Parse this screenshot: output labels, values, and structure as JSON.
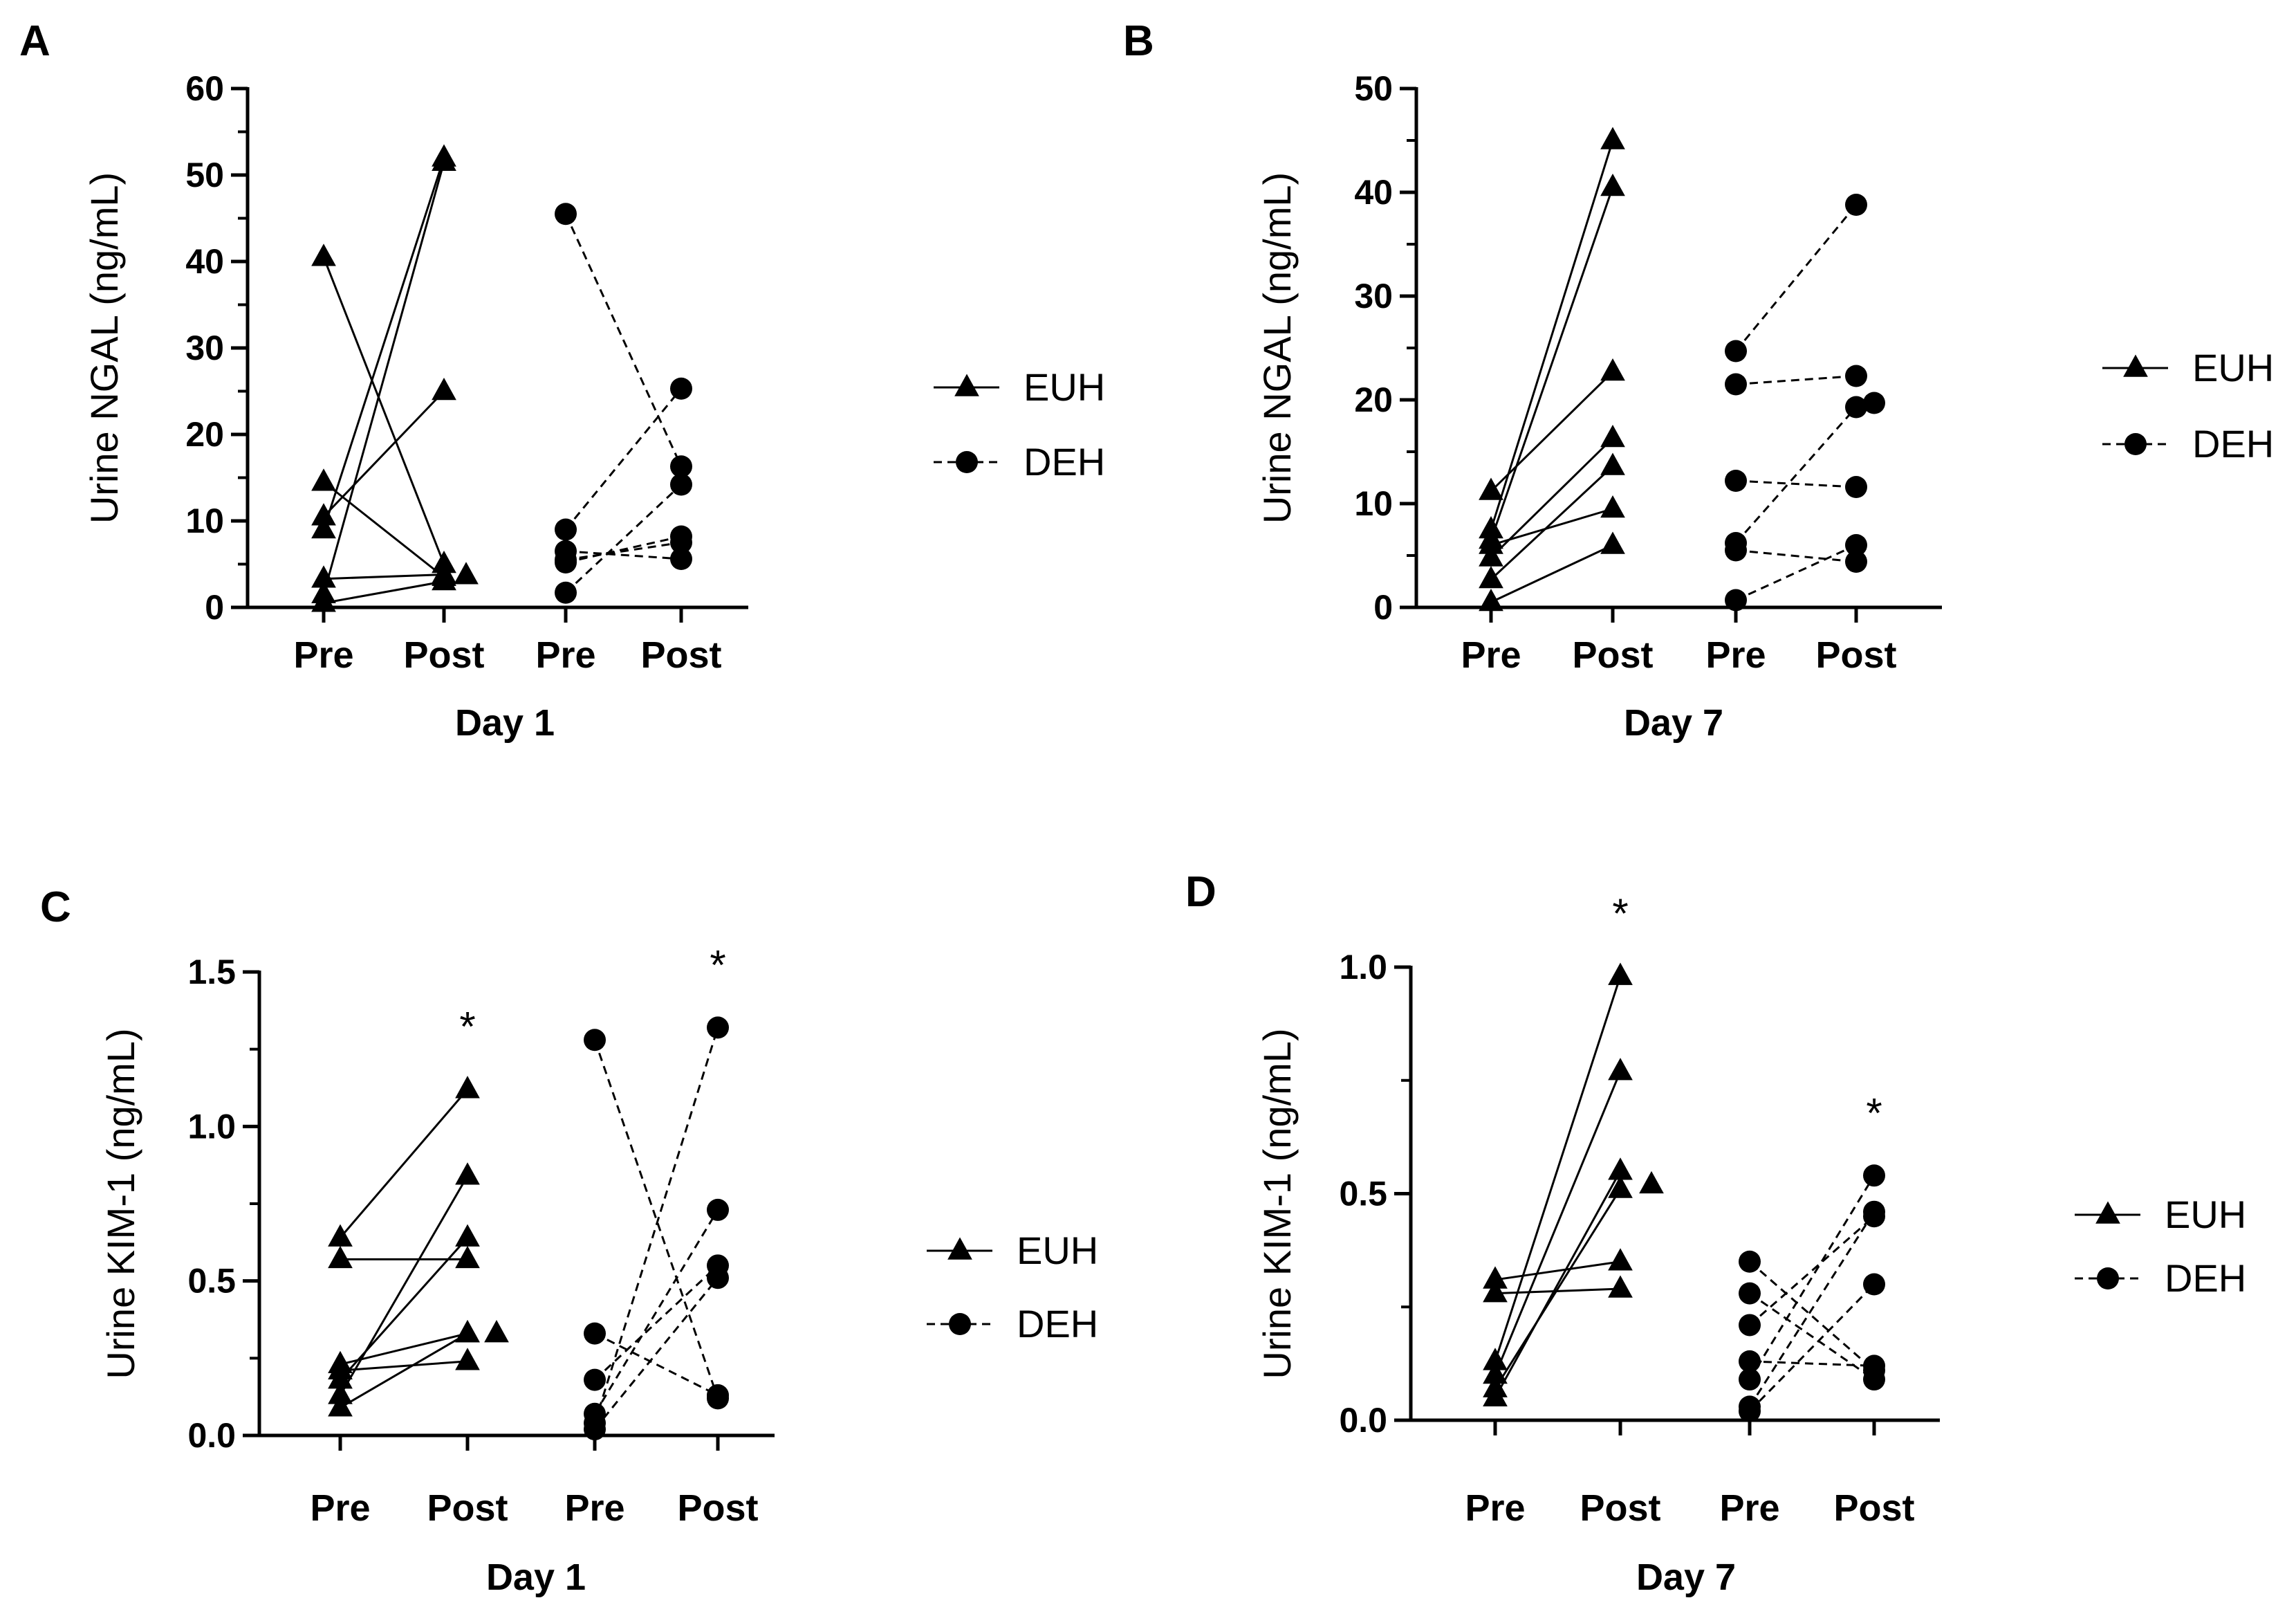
{
  "chart_data": [
    {
      "panel": "A",
      "type": "scatter",
      "ylabel": "Urine NGAL (ng/mL)",
      "xlabel": "Day 1",
      "categories": [
        "Pre",
        "Post",
        "Pre",
        "Post"
      ],
      "ylim": [
        0,
        60
      ],
      "yticks": [
        0,
        10,
        20,
        30,
        40,
        50,
        60
      ],
      "yticks_text": [
        "0",
        "10",
        "20",
        "30",
        "40",
        "50",
        "60"
      ],
      "significance": [],
      "legend": [
        {
          "name": "EUH",
          "marker": "triangle",
          "line": "solid"
        },
        {
          "name": "DEH",
          "marker": "circle",
          "line": "dashed"
        }
      ],
      "series": [
        {
          "name": "EUH",
          "pairs": [
            [
              40.5,
              5.0
            ],
            [
              14.5,
              3.5
            ],
            [
              10.5,
              25.0
            ],
            [
              9.0,
              52.0
            ],
            [
              3.3,
              3.8
            ],
            [
              1.5,
              51.5
            ],
            [
              0.5,
              3.0
            ]
          ],
          "unpaired_post": [
            3.7
          ]
        },
        {
          "name": "DEH",
          "pairs": [
            [
              45.5,
              16.3
            ],
            [
              9.0,
              25.3
            ],
            [
              6.5,
              5.6
            ],
            [
              5.5,
              7.5
            ],
            [
              5.2,
              8.2
            ],
            [
              1.7,
              14.2
            ]
          ],
          "unpaired_post": []
        }
      ]
    },
    {
      "panel": "B",
      "type": "scatter",
      "ylabel": "Urine NGAL (ng/mL)",
      "xlabel": "Day 7",
      "categories": [
        "Pre",
        "Post",
        "Pre",
        "Post"
      ],
      "ylim": [
        0,
        50
      ],
      "yticks": [
        0,
        10,
        20,
        30,
        40,
        50
      ],
      "yticks_text": [
        "0",
        "10",
        "20",
        "30",
        "40",
        "50"
      ],
      "significance": [],
      "legend": [
        {
          "name": "EUH",
          "marker": "triangle",
          "line": "solid"
        },
        {
          "name": "DEH",
          "marker": "circle",
          "line": "dashed"
        }
      ],
      "series": [
        {
          "name": "EUH",
          "pairs": [
            [
              11.2,
              22.7
            ],
            [
              7.5,
              45.0
            ],
            [
              6.5,
              40.5
            ],
            [
              6.0,
              9.5
            ],
            [
              4.8,
              16.3
            ],
            [
              2.7,
              13.6
            ],
            [
              0.5,
              6.0
            ]
          ],
          "unpaired_post": []
        },
        {
          "name": "DEH",
          "pairs": [
            [
              24.7,
              38.8
            ],
            [
              21.5,
              22.3
            ],
            [
              12.2,
              11.6
            ],
            [
              6.2,
              19.3
            ],
            [
              5.5,
              4.4
            ],
            [
              0.7,
              6.0
            ]
          ],
          "unpaired_post": [
            19.7
          ]
        }
      ]
    },
    {
      "panel": "C",
      "type": "scatter",
      "ylabel": "Urine KIM-1 (ng/mL)",
      "xlabel": "Day 1",
      "categories": [
        "Pre",
        "Post",
        "Pre",
        "Post"
      ],
      "ylim": [
        0,
        1.5
      ],
      "yticks": [
        0,
        0.5,
        1.0,
        1.5
      ],
      "yticks_text": [
        "0.0",
        "0.5",
        "1.0",
        "1.5"
      ],
      "significance": [
        {
          "category_index": 1,
          "label": "*"
        },
        {
          "category_index": 3,
          "label": "*"
        }
      ],
      "legend": [
        {
          "name": "EUH",
          "marker": "triangle",
          "line": "solid"
        },
        {
          "name": "DEH",
          "marker": "circle",
          "line": "dashed"
        }
      ],
      "series": [
        {
          "name": "EUH",
          "pairs": [
            [
              0.64,
              1.12
            ],
            [
              0.57,
              0.57
            ],
            [
              0.23,
              0.33
            ],
            [
              0.21,
              0.24
            ],
            [
              0.18,
              0.64
            ],
            [
              0.13,
              0.84
            ],
            [
              0.09,
              0.33
            ]
          ],
          "unpaired_post": [
            0.33
          ]
        },
        {
          "name": "DEH",
          "pairs": [
            [
              1.28,
              0.12
            ],
            [
              0.33,
              0.13
            ],
            [
              0.18,
              0.55
            ],
            [
              0.07,
              0.73
            ],
            [
              0.04,
              1.32
            ],
            [
              0.02,
              0.51
            ]
          ],
          "unpaired_post": []
        }
      ]
    },
    {
      "panel": "D",
      "type": "scatter",
      "ylabel": "Urine KIM-1 (ng/mL)",
      "xlabel": "Day 7",
      "categories": [
        "Pre",
        "Post",
        "Pre",
        "Post"
      ],
      "ylim": [
        0,
        1.0
      ],
      "yticks": [
        0,
        0.5,
        1.0
      ],
      "yticks_text": [
        "0.0",
        "0.5",
        "1.0"
      ],
      "significance": [
        {
          "category_index": 1,
          "label": "*"
        },
        {
          "category_index": 3,
          "label": "*"
        }
      ],
      "legend": [
        {
          "name": "EUH",
          "marker": "triangle",
          "line": "solid"
        },
        {
          "name": "DEH",
          "marker": "circle",
          "line": "dashed"
        }
      ],
      "series": [
        {
          "name": "EUH",
          "pairs": [
            [
              0.31,
              0.35
            ],
            [
              0.28,
              0.29
            ],
            [
              0.13,
              0.98
            ],
            [
              0.1,
              0.77
            ],
            [
              0.07,
              0.51
            ],
            [
              0.05,
              0.55
            ]
          ],
          "unpaired_post": [
            0.52
          ]
        },
        {
          "name": "DEH",
          "pairs": [
            [
              0.35,
              0.11
            ],
            [
              0.28,
              0.09
            ],
            [
              0.21,
              0.45
            ],
            [
              0.13,
              0.12
            ],
            [
              0.09,
              0.54
            ],
            [
              0.03,
              0.46
            ],
            [
              0.02,
              0.3
            ]
          ],
          "unpaired_post": []
        }
      ]
    }
  ]
}
